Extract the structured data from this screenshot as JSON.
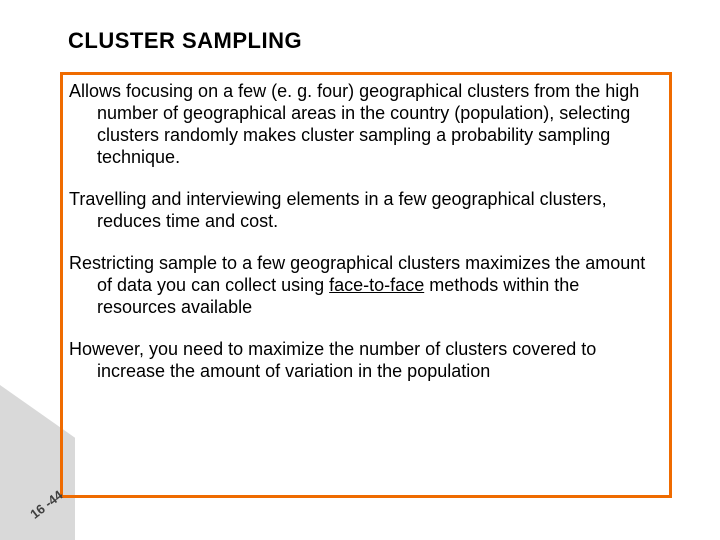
{
  "colors": {
    "title": "#000000",
    "box_border": "#ef6b00",
    "body_text": "#000000",
    "side_shape": "#d9d9d9",
    "page_num": "#404040",
    "background": "#ffffff"
  },
  "typography": {
    "title_fontsize": 22,
    "body_fontsize": 18,
    "pagenum_fontsize": 13
  },
  "title": "CLUSTER SAMPLING",
  "paragraphs": {
    "p1": "Allows focusing on a few (e. g. four) geographical clusters from the high number of geographical areas in the country (population), selecting clusters randomly makes cluster sampling a probability sampling technique.",
    "p2": "Travelling and interviewing elements in a few geographical clusters, reduces time and cost.",
    "p3_a": "Restricting sample to a few geographical clusters maximizes the amount of data you can collect using ",
    "p3_u": "face-to-face",
    "p3_b": " methods within the resources available",
    "p4": "However, you need to maximize the number of clusters covered to increase the amount of variation in the population"
  },
  "page_number": "16 -44"
}
